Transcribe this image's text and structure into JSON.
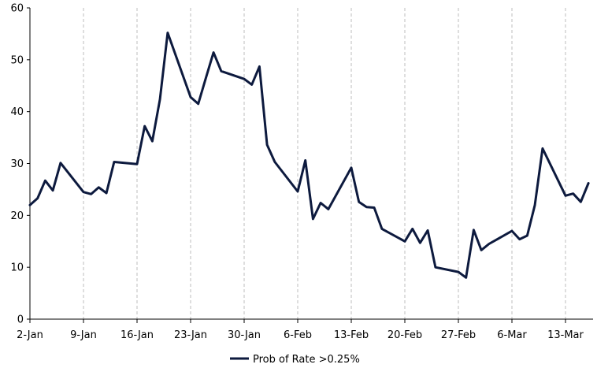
{
  "chart_data": {
    "type": "line",
    "title": "",
    "xlabel": "",
    "ylabel": "",
    "ylim": [
      0,
      60
    ],
    "yticks": [
      0,
      10,
      20,
      30,
      40,
      50,
      60
    ],
    "x_tick_labels": [
      "2-Jan",
      "9-Jan",
      "16-Jan",
      "23-Jan",
      "30-Jan",
      "6-Feb",
      "13-Feb",
      "20-Feb",
      "27-Feb",
      "6-Mar",
      "13-Mar"
    ],
    "grid": "vertical dashed at x ticks",
    "legend_position": "bottom-center",
    "series": [
      {
        "name": "Prob of Rate >0.25%",
        "color": "#0d1a3e",
        "points": [
          [
            "2-Jan",
            22.0
          ],
          [
            "3-Jan",
            23.3
          ],
          [
            "4-Jan",
            26.7
          ],
          [
            "5-Jan",
            24.8
          ],
          [
            "6-Jan",
            30.1
          ],
          [
            "9-Jan",
            24.5
          ],
          [
            "10-Jan",
            24.1
          ],
          [
            "11-Jan",
            25.4
          ],
          [
            "12-Jan",
            24.3
          ],
          [
            "13-Jan",
            30.3
          ],
          [
            "16-Jan",
            29.9
          ],
          [
            "17-Jan",
            37.2
          ],
          [
            "18-Jan",
            34.3
          ],
          [
            "19-Jan",
            42.4
          ],
          [
            "20-Jan",
            55.2
          ],
          [
            "23-Jan",
            42.8
          ],
          [
            "24-Jan",
            41.5
          ],
          [
            "25-Jan",
            46.5
          ],
          [
            "26-Jan",
            51.4
          ],
          [
            "27-Jan",
            47.8
          ],
          [
            "30-Jan",
            46.3
          ],
          [
            "31-Jan",
            45.2
          ],
          [
            "1-Feb",
            48.7
          ],
          [
            "2-Feb",
            33.6
          ],
          [
            "3-Feb",
            30.3
          ],
          [
            "6-Feb",
            24.6
          ],
          [
            "7-Feb",
            30.6
          ],
          [
            "8-Feb",
            19.3
          ],
          [
            "9-Feb",
            22.4
          ],
          [
            "10-Feb",
            21.2
          ],
          [
            "13-Feb",
            29.2
          ],
          [
            "14-Feb",
            22.6
          ],
          [
            "15-Feb",
            21.6
          ],
          [
            "16-Feb",
            21.5
          ],
          [
            "17-Feb",
            17.4
          ],
          [
            "20-Feb",
            15.0
          ],
          [
            "21-Feb",
            17.4
          ],
          [
            "22-Feb",
            14.7
          ],
          [
            "23-Feb",
            17.1
          ],
          [
            "24-Feb",
            10.0
          ],
          [
            "27-Feb",
            9.1
          ],
          [
            "28-Feb",
            8.0
          ],
          [
            "1-Mar",
            17.2
          ],
          [
            "2-Mar",
            13.3
          ],
          [
            "3-Mar",
            14.5
          ],
          [
            "6-Mar",
            17.0
          ],
          [
            "7-Mar",
            15.4
          ],
          [
            "8-Mar",
            16.1
          ],
          [
            "9-Mar",
            22.0
          ],
          [
            "10-Mar",
            32.9
          ],
          [
            "13-Mar",
            23.8
          ],
          [
            "14-Mar",
            24.2
          ],
          [
            "15-Mar",
            22.6
          ],
          [
            "16-Mar",
            26.2
          ]
        ]
      }
    ]
  }
}
